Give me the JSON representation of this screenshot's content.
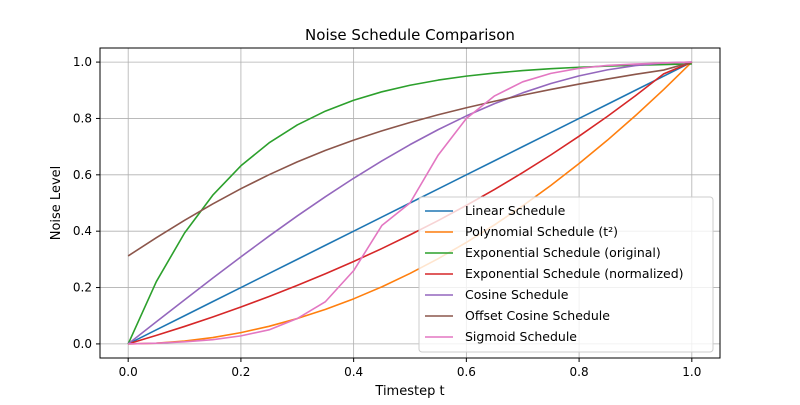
{
  "chart_data": {
    "type": "line",
    "title": "Noise Schedule Comparison",
    "xlabel": "Timestep t",
    "ylabel": "Noise Level",
    "xlim": [
      -0.05,
      1.05
    ],
    "ylim": [
      -0.05,
      1.05
    ],
    "xticks": [
      0.0,
      0.2,
      0.4,
      0.6,
      0.8,
      1.0
    ],
    "yticks": [
      0.0,
      0.2,
      0.4,
      0.6,
      0.8,
      1.0
    ],
    "xtick_labels": [
      "0.0",
      "0.2",
      "0.4",
      "0.6",
      "0.8",
      "1.0"
    ],
    "ytick_labels": [
      "0.0",
      "0.2",
      "0.4",
      "0.6",
      "0.8",
      "1.0"
    ],
    "grid": true,
    "legend_position": "lower-right",
    "x": [
      0.0,
      0.05,
      0.1,
      0.15,
      0.2,
      0.25,
      0.3,
      0.35,
      0.4,
      0.45,
      0.5,
      0.55,
      0.6,
      0.65,
      0.7,
      0.75,
      0.8,
      0.85,
      0.9,
      0.95,
      1.0
    ],
    "series": [
      {
        "name": "Linear Schedule",
        "color": "#1f77b4",
        "values": [
          0.0,
          0.05,
          0.1,
          0.15,
          0.2,
          0.25,
          0.3,
          0.35,
          0.4,
          0.45,
          0.5,
          0.55,
          0.6,
          0.65,
          0.7,
          0.75,
          0.8,
          0.85,
          0.9,
          0.95,
          1.0
        ]
      },
      {
        "name": "Polynomial Schedule (t²)",
        "color": "#ff7f0e",
        "values": [
          0.0,
          0.0025,
          0.01,
          0.0225,
          0.04,
          0.0625,
          0.09,
          0.1225,
          0.16,
          0.2025,
          0.25,
          0.3025,
          0.36,
          0.4225,
          0.49,
          0.5625,
          0.64,
          0.7225,
          0.81,
          0.9025,
          1.0
        ]
      },
      {
        "name": "Exponential Schedule (original)",
        "color": "#2ca02c",
        "values": [
          0.0,
          0.2212,
          0.3935,
          0.5276,
          0.6321,
          0.7135,
          0.7769,
          0.8262,
          0.8647,
          0.8946,
          0.9179,
          0.9361,
          0.9502,
          0.9612,
          0.9698,
          0.9765,
          0.9817,
          0.9857,
          0.9889,
          0.9913,
          0.9933
        ]
      },
      {
        "name": "Exponential Schedule (normalized)",
        "color": "#d62728",
        "values": [
          0.0,
          0.0302,
          0.062,
          0.0956,
          0.131,
          0.1683,
          0.2075,
          0.2489,
          0.2925,
          0.3384,
          0.3868,
          0.4378,
          0.4916,
          0.5482,
          0.6079,
          0.6708,
          0.7371,
          0.807,
          0.8806,
          0.9583,
          1.0
        ]
      },
      {
        "name": "Cosine Schedule",
        "color": "#9467bd",
        "values": [
          0.0,
          0.0785,
          0.1564,
          0.2334,
          0.309,
          0.3827,
          0.454,
          0.5225,
          0.5878,
          0.6494,
          0.7071,
          0.7604,
          0.809,
          0.8526,
          0.891,
          0.9239,
          0.9511,
          0.9724,
          0.9877,
          0.9969,
          1.0
        ]
      },
      {
        "name": "Offset Cosine Schedule",
        "color": "#8c564b",
        "values": [
          0.3123,
          0.3769,
          0.4385,
          0.4966,
          0.5507,
          0.6005,
          0.6458,
          0.6866,
          0.7231,
          0.756,
          0.7858,
          0.813,
          0.838,
          0.8611,
          0.8827,
          0.903,
          0.9221,
          0.9399,
          0.9565,
          0.9717,
          1.0
        ]
      },
      {
        "name": "Sigmoid Schedule",
        "color": "#e377c2",
        "values": [
          0.0,
          0.0025,
          0.0075,
          0.015,
          0.0285,
          0.05,
          0.09,
          0.15,
          0.26,
          0.42,
          0.5,
          0.67,
          0.8,
          0.88,
          0.93,
          0.96,
          0.978,
          0.988,
          0.993,
          0.997,
          1.0
        ]
      }
    ]
  }
}
